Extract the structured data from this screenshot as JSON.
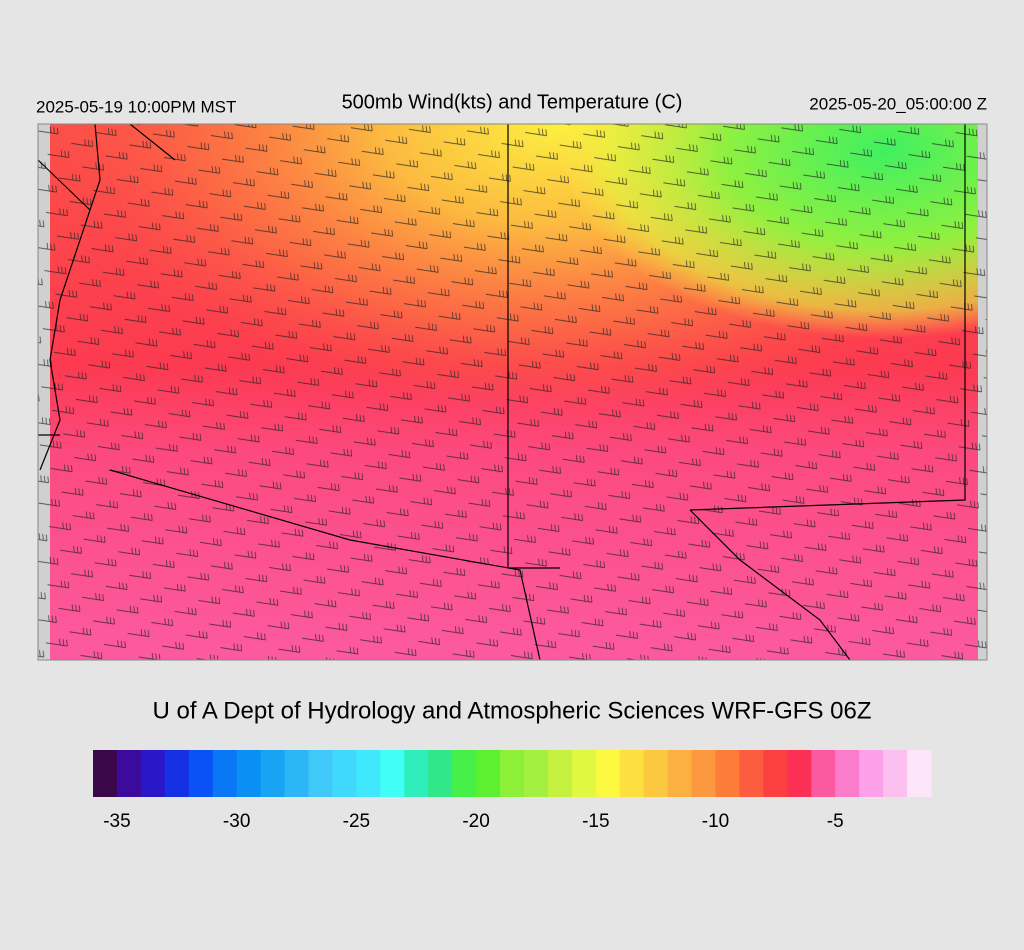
{
  "header": {
    "valid_local": "2025-05-19 10:00PM MST",
    "title": "500mb Wind(kts) and Temperature (C)",
    "valid_utc": "2025-05-20_05:00:00 Z"
  },
  "credit": "U of A Dept of Hydrology and Atmospheric Sciences WRF-GFS 06Z",
  "colorbar": {
    "xlim": [
      -36,
      -1
    ],
    "ticks": [
      -35,
      -30,
      -25,
      -20,
      -15,
      -10,
      -5
    ],
    "colors": [
      "#3a0848",
      "#3c0a9c",
      "#2a18c8",
      "#1630e6",
      "#0a52f6",
      "#0a78f6",
      "#0a90f4",
      "#18a4f2",
      "#2cb6f6",
      "#40c8f8",
      "#40d8fc",
      "#40e8fe",
      "#40fff4",
      "#30eebc",
      "#30e88a",
      "#46f048",
      "#5cf030",
      "#8cf038",
      "#a4f040",
      "#c4f040",
      "#e2f840",
      "#fcf840",
      "#fce040",
      "#fcc840",
      "#fcb040",
      "#fc9840",
      "#fc7c38",
      "#fc5c40",
      "#fc4040",
      "#fc3054",
      "#fc5aa0",
      "#fc7ccc",
      "#fca0ea",
      "#fcc0f0",
      "#fee6fa"
    ]
  }
}
